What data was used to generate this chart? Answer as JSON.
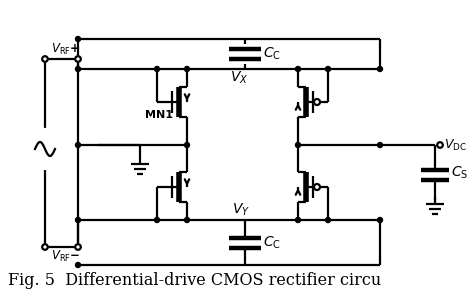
{
  "caption": "Fig. 5  Differential-drive CMOS rectifier circu",
  "caption_fontsize": 11.5,
  "bg_color": "#ffffff",
  "line_color": "#000000",
  "line_width": 1.6,
  "fig_width": 4.74,
  "fig_height": 2.97,
  "dpi": 100
}
